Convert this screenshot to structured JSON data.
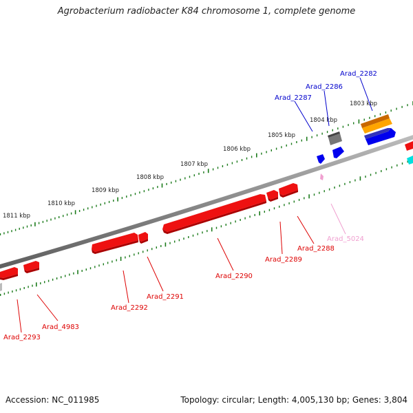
{
  "title": "Agrobacterium radiobacter K84 chromosome 1, complete genome",
  "footer": {
    "accession": "Accession: NC_011985",
    "summary": "Topology: circular; Length: 4,005,130 bp; Genes: 3,804"
  },
  "colors": {
    "background": "#ffffff",
    "backbone": "#8c8c8c",
    "tick": "#1a7a1a",
    "gene_red": "#ee1111",
    "gene_blue": "#0000ee",
    "gene_orange": "#ff8800",
    "gene_gray": "#777777",
    "gene_pink": "#f0a0d0",
    "gene_cyan": "#00e0e0"
  },
  "kbp_labels": [
    "1803 kbp",
    "1804 kbp",
    "1805 kbp",
    "1806 kbp",
    "1807 kbp",
    "1808 kbp",
    "1809 kbp",
    "1810 kbp",
    "1811 kbp"
  ],
  "gene_labels": [
    {
      "text": "Arad_2282",
      "strand": "forward",
      "color": "#0000cc"
    },
    {
      "text": "Arad_2286",
      "strand": "forward",
      "color": "#0000cc"
    },
    {
      "text": "Arad_2287",
      "strand": "forward",
      "color": "#0000cc"
    },
    {
      "text": "Arad_5024",
      "strand": "reverse",
      "color": "#f0a0d0"
    },
    {
      "text": "Arad_2288",
      "strand": "reverse",
      "color": "#dd0000"
    },
    {
      "text": "Arad_2289",
      "strand": "reverse",
      "color": "#dd0000"
    },
    {
      "text": "Arad_2290",
      "strand": "reverse",
      "color": "#dd0000"
    },
    {
      "text": "Arad_2291",
      "strand": "reverse",
      "color": "#dd0000"
    },
    {
      "text": "Arad_2292",
      "strand": "reverse",
      "color": "#dd0000"
    },
    {
      "text": "Arad_4983",
      "strand": "reverse",
      "color": "#dd0000"
    },
    {
      "text": "Arad_2293",
      "strand": "reverse",
      "color": "#dd0000"
    }
  ]
}
